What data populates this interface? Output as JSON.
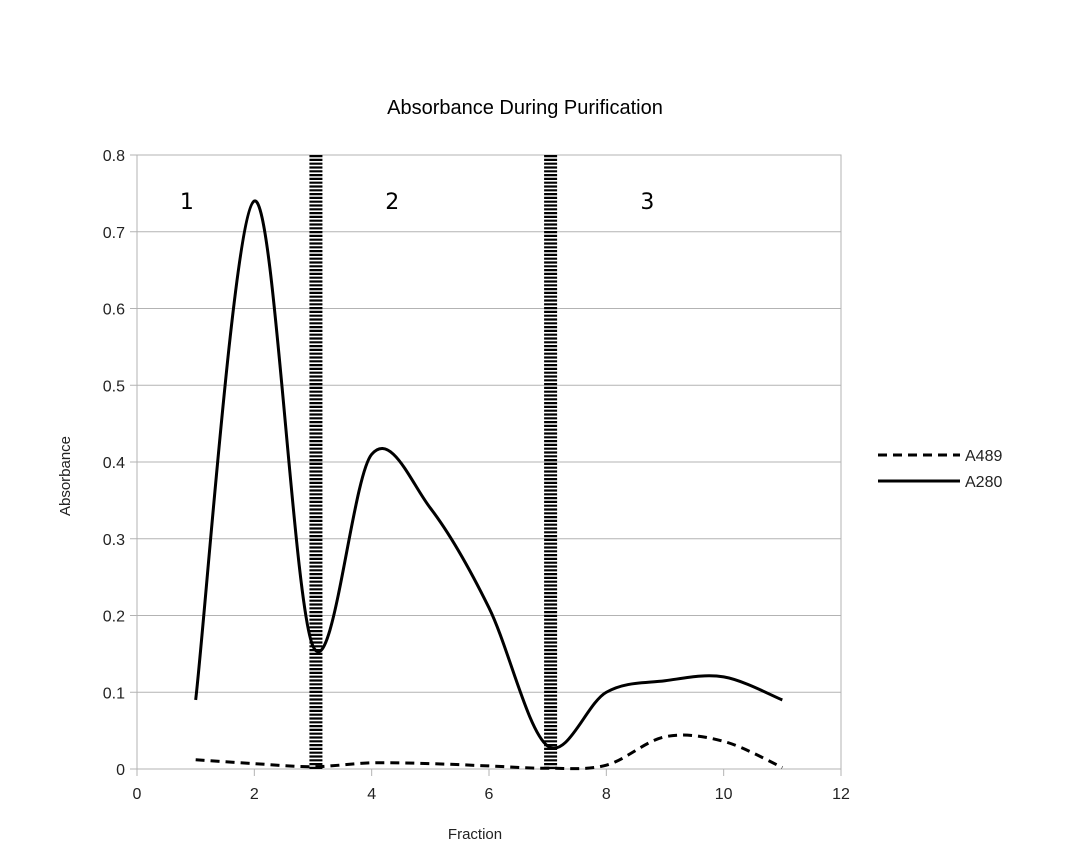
{
  "chart_data": {
    "type": "line",
    "title": "Absorbance During Purification",
    "xlabel": "Fraction",
    "ylabel": "Absorbance",
    "xlim": [
      0,
      12
    ],
    "ylim": [
      0,
      0.8
    ],
    "x_ticks": [
      0,
      2,
      4,
      6,
      8,
      10,
      12
    ],
    "y_ticks": [
      0,
      0.1,
      0.2,
      0.3,
      0.4,
      0.5,
      0.6,
      0.7,
      0.8
    ],
    "y_tick_labels": [
      "0",
      "0.1",
      "0.2",
      "0.3",
      "0.4",
      "0.5",
      "0.6",
      "0.7",
      "0.8"
    ],
    "grid": "horizontal",
    "legend_position": "right",
    "smooth": true,
    "x": [
      1,
      2,
      3,
      4,
      5,
      6,
      7,
      8,
      9,
      10,
      11
    ],
    "series": [
      {
        "name": "A489",
        "style": "dashed",
        "color": "#000000",
        "values": [
          0.012,
          0.007,
          0.003,
          0.008,
          0.007,
          0.004,
          0.001,
          0.005,
          0.042,
          0.036,
          0.002
        ]
      },
      {
        "name": "A280",
        "style": "solid",
        "color": "#000000",
        "values": [
          0.09,
          0.74,
          0.16,
          0.41,
          0.34,
          0.21,
          0.03,
          0.1,
          0.115,
          0.12,
          0.09
        ]
      }
    ],
    "region_dividers": [
      3.05,
      7.05
    ],
    "region_labels": [
      {
        "text": "1",
        "x": 0.85,
        "y": 0.74
      },
      {
        "text": "2",
        "x": 4.35,
        "y": 0.74
      },
      {
        "text": "3",
        "x": 8.7,
        "y": 0.74
      }
    ]
  }
}
